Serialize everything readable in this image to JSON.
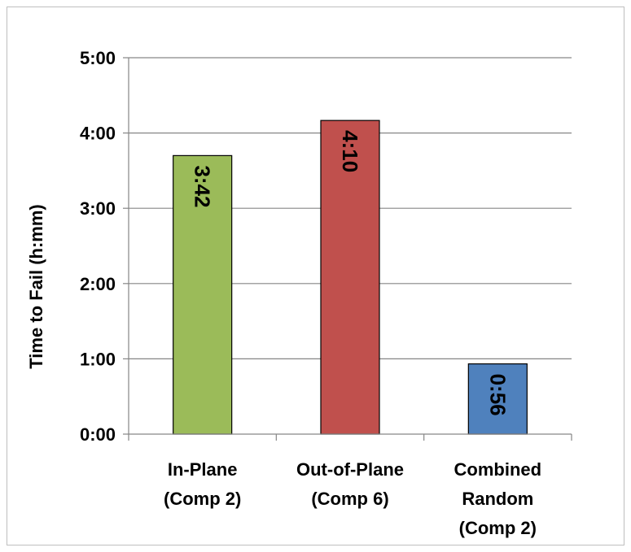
{
  "chart_data": {
    "type": "bar",
    "categories": [
      [
        "In-Plane",
        "(Comp 2)"
      ],
      [
        "Out-of-Plane",
        "(Comp 6)"
      ],
      [
        "Combined",
        "Random",
        "(Comp 2)"
      ]
    ],
    "values_minutes": [
      222,
      250,
      56
    ],
    "data_labels": [
      "3:42",
      "4:10",
      "0:56"
    ],
    "bar_colors": [
      "#9bbb59",
      "#c0504d",
      "#4f81bd"
    ],
    "ylabel": "Time to Fail (h:mm)",
    "ylim_minutes": [
      0,
      300
    ],
    "yticks_minutes": [
      0,
      60,
      120,
      180,
      240,
      300
    ],
    "ytick_labels": [
      "0:00",
      "1:00",
      "2:00",
      "3:00",
      "4:00",
      "5:00"
    ],
    "grid": true,
    "legend": "none"
  }
}
